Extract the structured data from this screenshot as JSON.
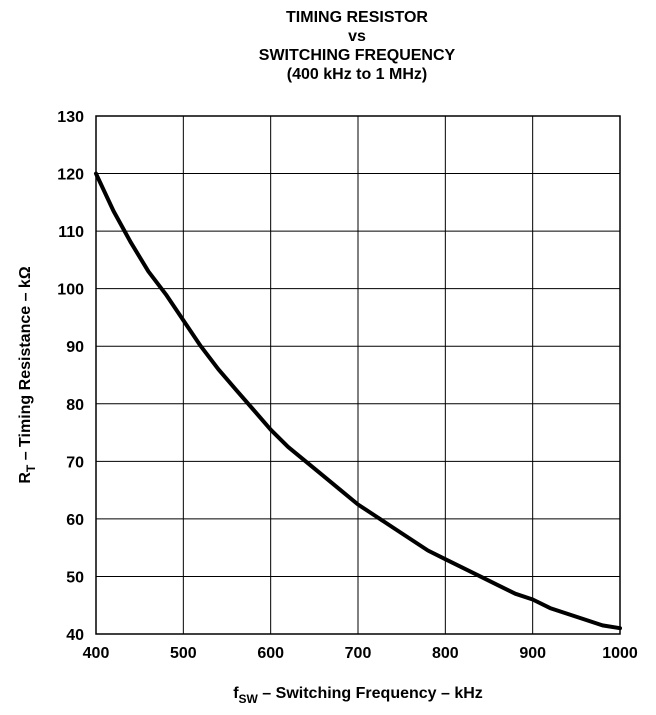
{
  "chart_data": {
    "type": "line",
    "title_lines": [
      "TIMING RESISTOR",
      "vs",
      "SWITCHING FREQUENCY",
      "(400 kHz to 1 MHz)"
    ],
    "xlabel": {
      "main": "f",
      "sub": "SW",
      "rest": " – Switching Frequency – kHz"
    },
    "ylabel": {
      "main": "R",
      "sub": "T",
      "rest": " – Timing Resistance – kΩ"
    },
    "xlim": [
      400,
      1000
    ],
    "ylim": [
      40,
      130
    ],
    "x_ticks": [
      400,
      500,
      600,
      700,
      800,
      900,
      1000
    ],
    "y_ticks": [
      40,
      50,
      60,
      70,
      80,
      90,
      100,
      110,
      120,
      130
    ],
    "grid": true,
    "line_color": "#000000",
    "series": [
      {
        "x": [
          400,
          420,
          440,
          460,
          480,
          500,
          520,
          540,
          560,
          580,
          600,
          620,
          640,
          660,
          680,
          700,
          720,
          740,
          760,
          780,
          800,
          820,
          840,
          860,
          880,
          900,
          920,
          940,
          960,
          980,
          1000
        ],
        "y": [
          120,
          113.5,
          108,
          103,
          99,
          94.5,
          90,
          86,
          82.5,
          79,
          75.5,
          72.5,
          70,
          67.5,
          65,
          62.5,
          60.5,
          58.5,
          56.5,
          54.5,
          53,
          51.5,
          50,
          48.5,
          47,
          46,
          44.5,
          43.5,
          42.5,
          41.5,
          41
        ]
      }
    ]
  }
}
